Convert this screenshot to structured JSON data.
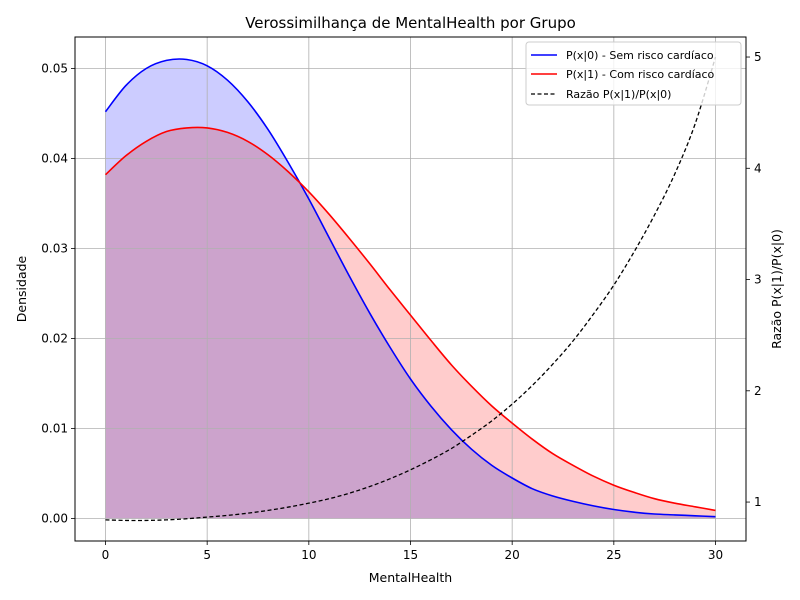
{
  "chart_data": {
    "type": "line",
    "title": "Verossimilhança de MentalHealth por Grupo",
    "xlabel": "MentalHealth",
    "ylabel": "Densidade",
    "y2label": "Razão P(x|1)/P(x|0)",
    "xlim": [
      -1.5,
      31.5
    ],
    "ylim": [
      -0.0025,
      0.0535
    ],
    "y2lim": [
      0.65,
      5.18
    ],
    "xticks": [
      0,
      5,
      10,
      15,
      20,
      25,
      30
    ],
    "yticks": [
      0.0,
      0.01,
      0.02,
      0.03,
      0.04,
      0.05
    ],
    "ytick_labels": [
      "0.00",
      "0.01",
      "0.02",
      "0.03",
      "0.04",
      "0.05"
    ],
    "y2ticks": [
      1,
      2,
      3,
      4,
      5
    ],
    "grid": true,
    "legend_position": "top-right",
    "series": [
      {
        "name": "P(x|0) - Sem risco cardíaco",
        "axis": "left",
        "color": "#0000ff",
        "fill": "#ccccff",
        "style": "solid",
        "x": [
          0,
          1,
          2,
          3,
          4,
          5,
          6,
          7,
          8,
          9,
          10,
          11,
          12,
          13,
          14,
          15,
          16,
          17,
          18,
          19,
          20,
          21,
          22,
          23,
          24,
          25,
          26,
          27,
          28,
          29,
          30
        ],
        "values": [
          0.0452,
          0.0481,
          0.05,
          0.0509,
          0.051,
          0.0503,
          0.0487,
          0.0463,
          0.0432,
          0.0395,
          0.0355,
          0.0312,
          0.0269,
          0.0228,
          0.019,
          0.0155,
          0.0125,
          0.0099,
          0.0077,
          0.0059,
          0.0045,
          0.0033,
          0.0025,
          0.0019,
          0.0014,
          0.001,
          0.0007,
          0.0005,
          0.0004,
          0.0003,
          0.0002
        ]
      },
      {
        "name": "P(x|1) - Com risco cardíaco",
        "axis": "left",
        "color": "#ff0000",
        "fill": "#ffcccc",
        "style": "solid",
        "x": [
          0,
          1,
          2,
          3,
          4,
          5,
          6,
          7,
          8,
          9,
          10,
          11,
          12,
          13,
          14,
          15,
          16,
          17,
          18,
          19,
          20,
          21,
          22,
          23,
          24,
          25,
          26,
          27,
          28,
          29,
          30
        ],
        "values": [
          0.0382,
          0.0403,
          0.0419,
          0.043,
          0.0434,
          0.0434,
          0.0429,
          0.0419,
          0.0404,
          0.0385,
          0.0363,
          0.0338,
          0.0311,
          0.0283,
          0.0254,
          0.0226,
          0.0198,
          0.0171,
          0.0147,
          0.0125,
          0.0106,
          0.0088,
          0.0072,
          0.0059,
          0.0047,
          0.0037,
          0.0029,
          0.0022,
          0.0017,
          0.0013,
          0.0009
        ]
      },
      {
        "name": "Razão P(x|1)/P(x|0)",
        "axis": "right",
        "color": "#000000",
        "style": "dashed",
        "x": [
          0,
          1,
          2,
          3,
          4,
          5,
          6,
          7,
          8,
          9,
          10,
          11,
          12,
          13,
          14,
          15,
          16,
          17,
          18,
          19,
          20,
          21,
          22,
          23,
          24,
          25,
          26,
          27,
          28,
          29,
          30
        ],
        "values": [
          0.84,
          0.835,
          0.835,
          0.84,
          0.85,
          0.865,
          0.88,
          0.9,
          0.925,
          0.955,
          0.99,
          1.03,
          1.08,
          1.14,
          1.21,
          1.29,
          1.38,
          1.48,
          1.6,
          1.73,
          1.88,
          2.05,
          2.24,
          2.45,
          2.69,
          2.95,
          3.25,
          3.58,
          3.95,
          4.4,
          5.0
        ]
      }
    ]
  }
}
